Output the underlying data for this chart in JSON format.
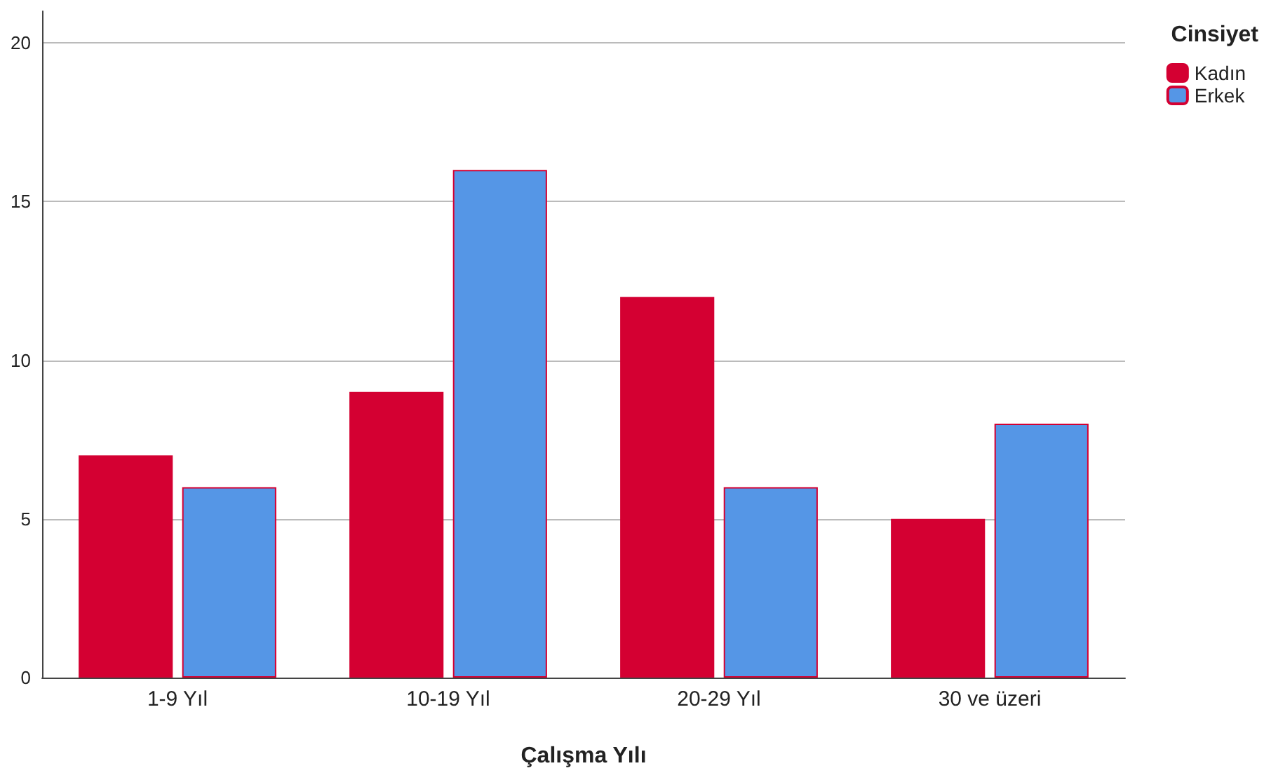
{
  "chart_data": {
    "type": "bar",
    "xlabel": "Çalışma Yılı",
    "legend_title": "Cinsiyet",
    "categories": [
      "1-9 Yıl",
      "10-19 Yıl",
      "20-29 Yıl",
      "30 ve üzeri"
    ],
    "series": [
      {
        "name": "Kadın",
        "color": "#d40032",
        "values": [
          7,
          9,
          12,
          5
        ]
      },
      {
        "name": "Erkek",
        "color": "#5596e6",
        "values": [
          6,
          16,
          6,
          8
        ]
      }
    ],
    "ylim": [
      0,
      21
    ],
    "yticks": [
      0,
      5,
      10,
      15,
      20
    ],
    "grid": "y",
    "legend": "top right"
  }
}
